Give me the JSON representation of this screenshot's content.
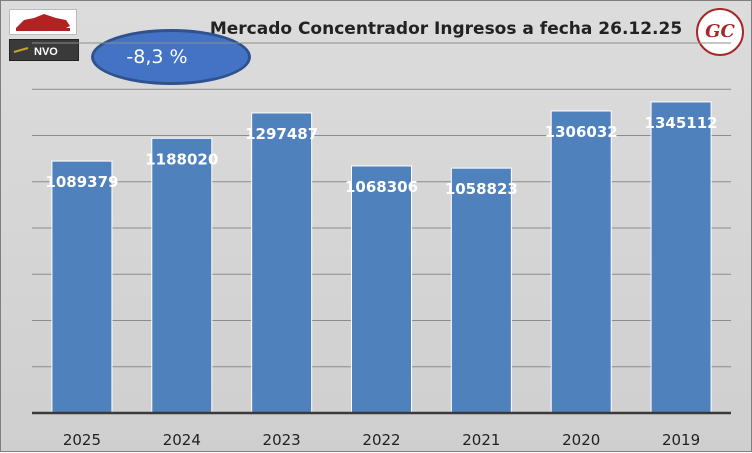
{
  "header": {
    "title": "Mercado Concentrador Ingresos a fecha 26.12.25",
    "badge": "-8,3 %",
    "logo_mark": "GC",
    "logo_left_bottom_text": "NVO"
  },
  "colors": {
    "bar": "#4f81bd",
    "background": "#d9d9d9",
    "badge_fill": "#4472c4",
    "logo_accent": "#a52a2a"
  },
  "chart_data": {
    "type": "bar",
    "categories": [
      "2025",
      "2024",
      "2023",
      "2022",
      "2021",
      "2020",
      "2019"
    ],
    "values": [
      1089379,
      1188020,
      1297487,
      1068306,
      1058823,
      1306032,
      1345112
    ],
    "ylim": [
      0,
      1600000
    ],
    "grid": true,
    "legend": "none",
    "xlabel": "",
    "ylabel": ""
  }
}
